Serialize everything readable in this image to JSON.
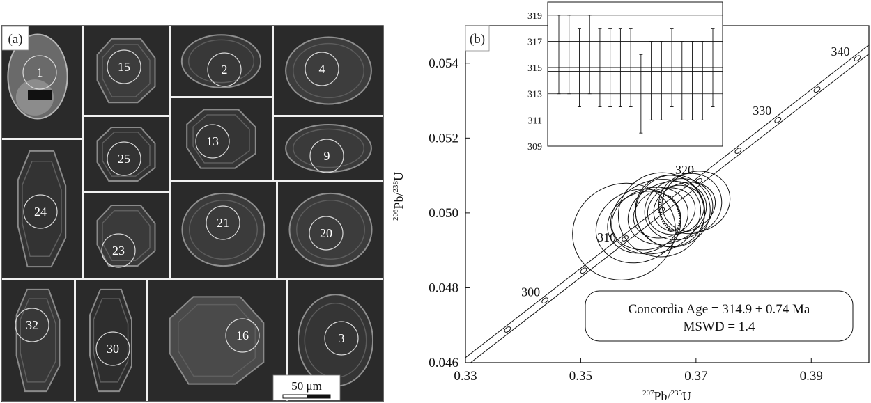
{
  "panel_a": {
    "label": "(a)",
    "scale_bar": "50 μm",
    "grains": [
      "1",
      "15",
      "2",
      "4",
      "25",
      "13",
      "9",
      "24",
      "23",
      "21",
      "20",
      "32",
      "30",
      "16",
      "3"
    ]
  },
  "panel_b": {
    "label": "(b)",
    "annotation_line1": "Concordia Age = 314.9 ± 0.74 Ma",
    "annotation_line2": "MSWD = 1.4"
  },
  "chart_data": [
    {
      "type": "scatter",
      "title": "",
      "xlabel": "207Pb/235U",
      "ylabel": "206Pb/238U",
      "xlim": [
        0.33,
        0.4
      ],
      "ylim": [
        0.046,
        0.055
      ],
      "x_ticks": [
        "0.33",
        "0.35",
        "0.37",
        "0.39"
      ],
      "y_ticks": [
        "0.046",
        "0.048",
        "0.050",
        "0.052",
        "0.054"
      ],
      "concordia_age_labels": [
        {
          "age": "300",
          "x": 0.3438,
          "y": 0.04766
        },
        {
          "age": "310",
          "x": 0.3577,
          "y": 0.04931
        },
        {
          "age": "320",
          "x": 0.3705,
          "y": 0.05089
        },
        {
          "age": "330",
          "x": 0.3842,
          "y": 0.05251
        },
        {
          "age": "340",
          "x": 0.398,
          "y": 0.05413
        }
      ],
      "ellipses": [
        {
          "x": 0.365,
          "y": 0.05,
          "rx": 0.007,
          "ry": 0.0005
        },
        {
          "x": 0.366,
          "y": 0.05005,
          "rx": 0.0065,
          "ry": 0.0006
        },
        {
          "x": 0.364,
          "y": 0.04995,
          "rx": 0.0075,
          "ry": 0.0007
        },
        {
          "x": 0.367,
          "y": 0.0501,
          "rx": 0.006,
          "ry": 0.0005
        },
        {
          "x": 0.363,
          "y": 0.0499,
          "rx": 0.008,
          "ry": 0.0006
        },
        {
          "x": 0.368,
          "y": 0.05015,
          "rx": 0.0055,
          "ry": 0.0004
        },
        {
          "x": 0.362,
          "y": 0.04985,
          "rx": 0.0068,
          "ry": 0.0005
        },
        {
          "x": 0.3655,
          "y": 0.05005,
          "rx": 0.006,
          "ry": 0.0006
        },
        {
          "x": 0.369,
          "y": 0.05025,
          "rx": 0.0055,
          "ry": 0.0005
        },
        {
          "x": 0.361,
          "y": 0.04975,
          "rx": 0.0065,
          "ry": 0.0005
        },
        {
          "x": 0.36,
          "y": 0.04965,
          "rx": 0.0075,
          "ry": 0.0006
        },
        {
          "x": 0.37,
          "y": 0.0503,
          "rx": 0.006,
          "ry": 0.0005
        },
        {
          "x": 0.3645,
          "y": 0.05,
          "rx": 0.0055,
          "ry": 0.0004
        },
        {
          "x": 0.3665,
          "y": 0.05008,
          "rx": 0.005,
          "ry": 0.0004
        },
        {
          "x": 0.3575,
          "y": 0.0495,
          "rx": 0.009,
          "ry": 0.0008
        }
      ],
      "concordia_age_ellipse": {
        "x": 0.3654,
        "y": 0.05,
        "rx": 0.0016,
        "ry": 0.00012
      }
    },
    {
      "type": "bar",
      "title": "",
      "ylim": [
        309,
        320
      ],
      "y_ticks": [
        "309",
        "311",
        "313",
        "315",
        "317",
        "319"
      ],
      "mean_lines": [
        315.0,
        314.7
      ],
      "error_bars": [
        {
          "low": 313,
          "high": 319
        },
        {
          "low": 313,
          "high": 319
        },
        {
          "low": 312,
          "high": 318
        },
        {
          "low": 313,
          "high": 319
        },
        {
          "low": 312,
          "high": 318
        },
        {
          "low": 312,
          "high": 318
        },
        {
          "low": 312,
          "high": 318
        },
        {
          "low": 312,
          "high": 318
        },
        {
          "low": 310,
          "high": 316
        },
        {
          "low": 311,
          "high": 317
        },
        {
          "low": 311,
          "high": 317
        },
        {
          "low": 312,
          "high": 318
        },
        {
          "low": 311,
          "high": 317
        },
        {
          "low": 311,
          "high": 317
        },
        {
          "low": 311,
          "high": 317
        },
        {
          "low": 312,
          "high": 318
        }
      ]
    }
  ]
}
